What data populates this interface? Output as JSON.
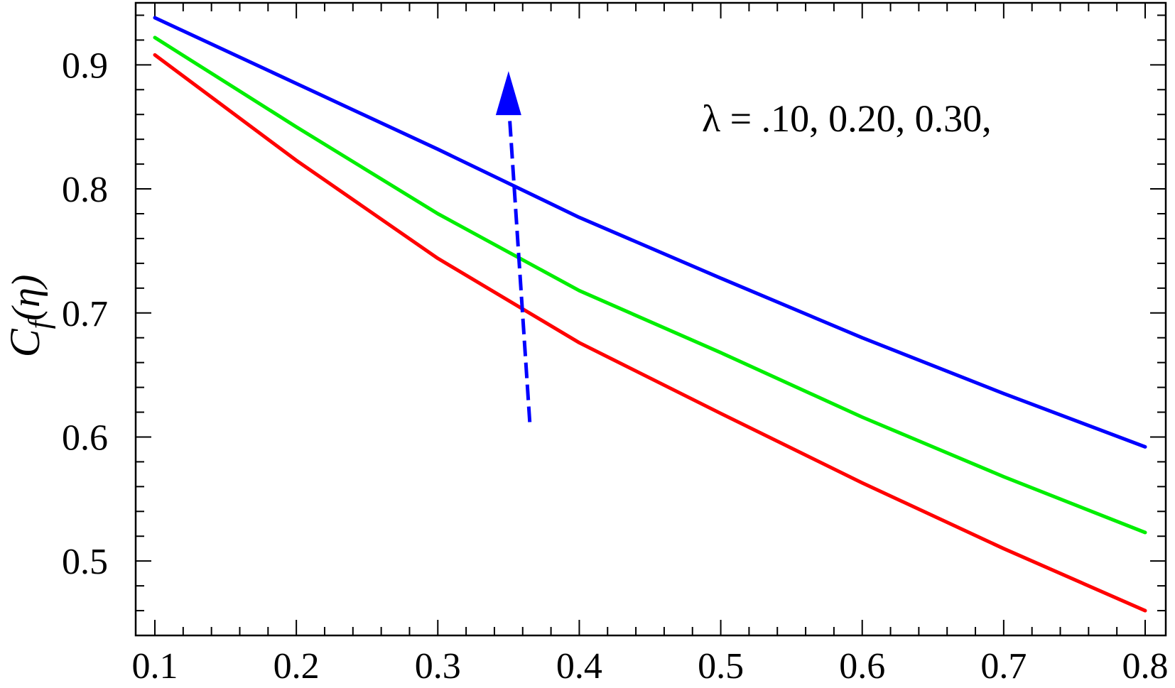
{
  "chart_data": {
    "type": "line",
    "title": "",
    "xlabel": "",
    "ylabel": {
      "base": "C",
      "sub": "f",
      "arg": "(η)"
    },
    "xlim": [
      0.1,
      0.8
    ],
    "ylim": [
      0.44,
      0.95
    ],
    "x_ticks": [
      "0.1",
      "0.2",
      "0.3",
      "0.4",
      "0.5",
      "0.6",
      "0.7",
      "0.8"
    ],
    "y_ticks": [
      "0.5",
      "0.6",
      "0.7",
      "0.8",
      "0.9"
    ],
    "grid": false,
    "annotation": "λ = .10, 0.20, 0.30,",
    "series": [
      {
        "color": "#ff0000",
        "x": [
          0.1,
          0.2,
          0.3,
          0.4,
          0.5,
          0.6,
          0.7,
          0.8
        ],
        "y": [
          0.908,
          0.823,
          0.744,
          0.676,
          0.619,
          0.563,
          0.51,
          0.46
        ]
      },
      {
        "color": "#00ee00",
        "x": [
          0.1,
          0.2,
          0.3,
          0.4,
          0.5,
          0.6,
          0.7,
          0.8
        ],
        "y": [
          0.922,
          0.85,
          0.78,
          0.718,
          0.668,
          0.616,
          0.568,
          0.523
        ]
      },
      {
        "color": "#0000ff",
        "x": [
          0.1,
          0.2,
          0.3,
          0.4,
          0.5,
          0.6,
          0.7,
          0.8
        ],
        "y": [
          0.938,
          0.885,
          0.832,
          0.777,
          0.728,
          0.68,
          0.635,
          0.592
        ]
      }
    ],
    "arrow": {
      "color": "#0000ff",
      "direction": "up",
      "x_from": 0.365,
      "y_from": 0.612,
      "x_to": 0.35,
      "y_to": 0.895
    }
  }
}
